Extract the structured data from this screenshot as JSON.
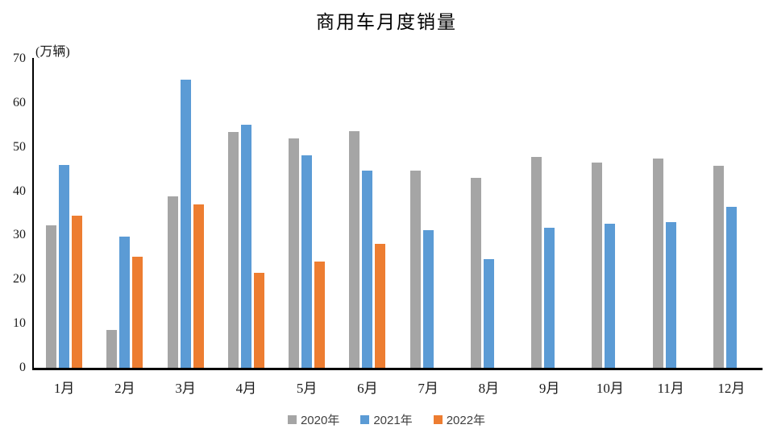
{
  "title": "商用车月度销量",
  "y_axis_unit": "(万辆)",
  "legend_items": [
    "2020年",
    "2021年",
    "2022年"
  ],
  "colors": {
    "gray_2020": "#A5A5A5",
    "blue_2021": "#5B9BD5",
    "orange_2022": "#ED7D31",
    "axis": "#000000"
  },
  "chart_data": {
    "type": "bar",
    "title": "商用车月度销量",
    "ylabel": "(万辆)",
    "categories": [
      "1月",
      "2月",
      "3月",
      "4月",
      "5月",
      "6月",
      "7月",
      "8月",
      "9月",
      "10月",
      "11月",
      "12月"
    ],
    "series": [
      {
        "name": "2020年",
        "color": "#A5A5A5",
        "values": [
          32.2,
          8.6,
          38.8,
          53.5,
          52.0,
          53.6,
          44.7,
          43.1,
          47.7,
          46.4,
          47.4,
          45.8
        ]
      },
      {
        "name": "2021年",
        "color": "#5B9BD5",
        "values": [
          45.9,
          29.8,
          65.2,
          55.0,
          48.2,
          44.6,
          31.2,
          24.7,
          31.7,
          32.7,
          33.0,
          36.5
        ]
      },
      {
        "name": "2022年",
        "color": "#ED7D31",
        "values": [
          34.5,
          25.1,
          37.0,
          21.5,
          24.0,
          28.1,
          null,
          null,
          null,
          null,
          null,
          null
        ]
      }
    ],
    "ylim": [
      0,
      70
    ],
    "y_tick_step": 10,
    "grid": false,
    "legend_position": "bottom"
  }
}
